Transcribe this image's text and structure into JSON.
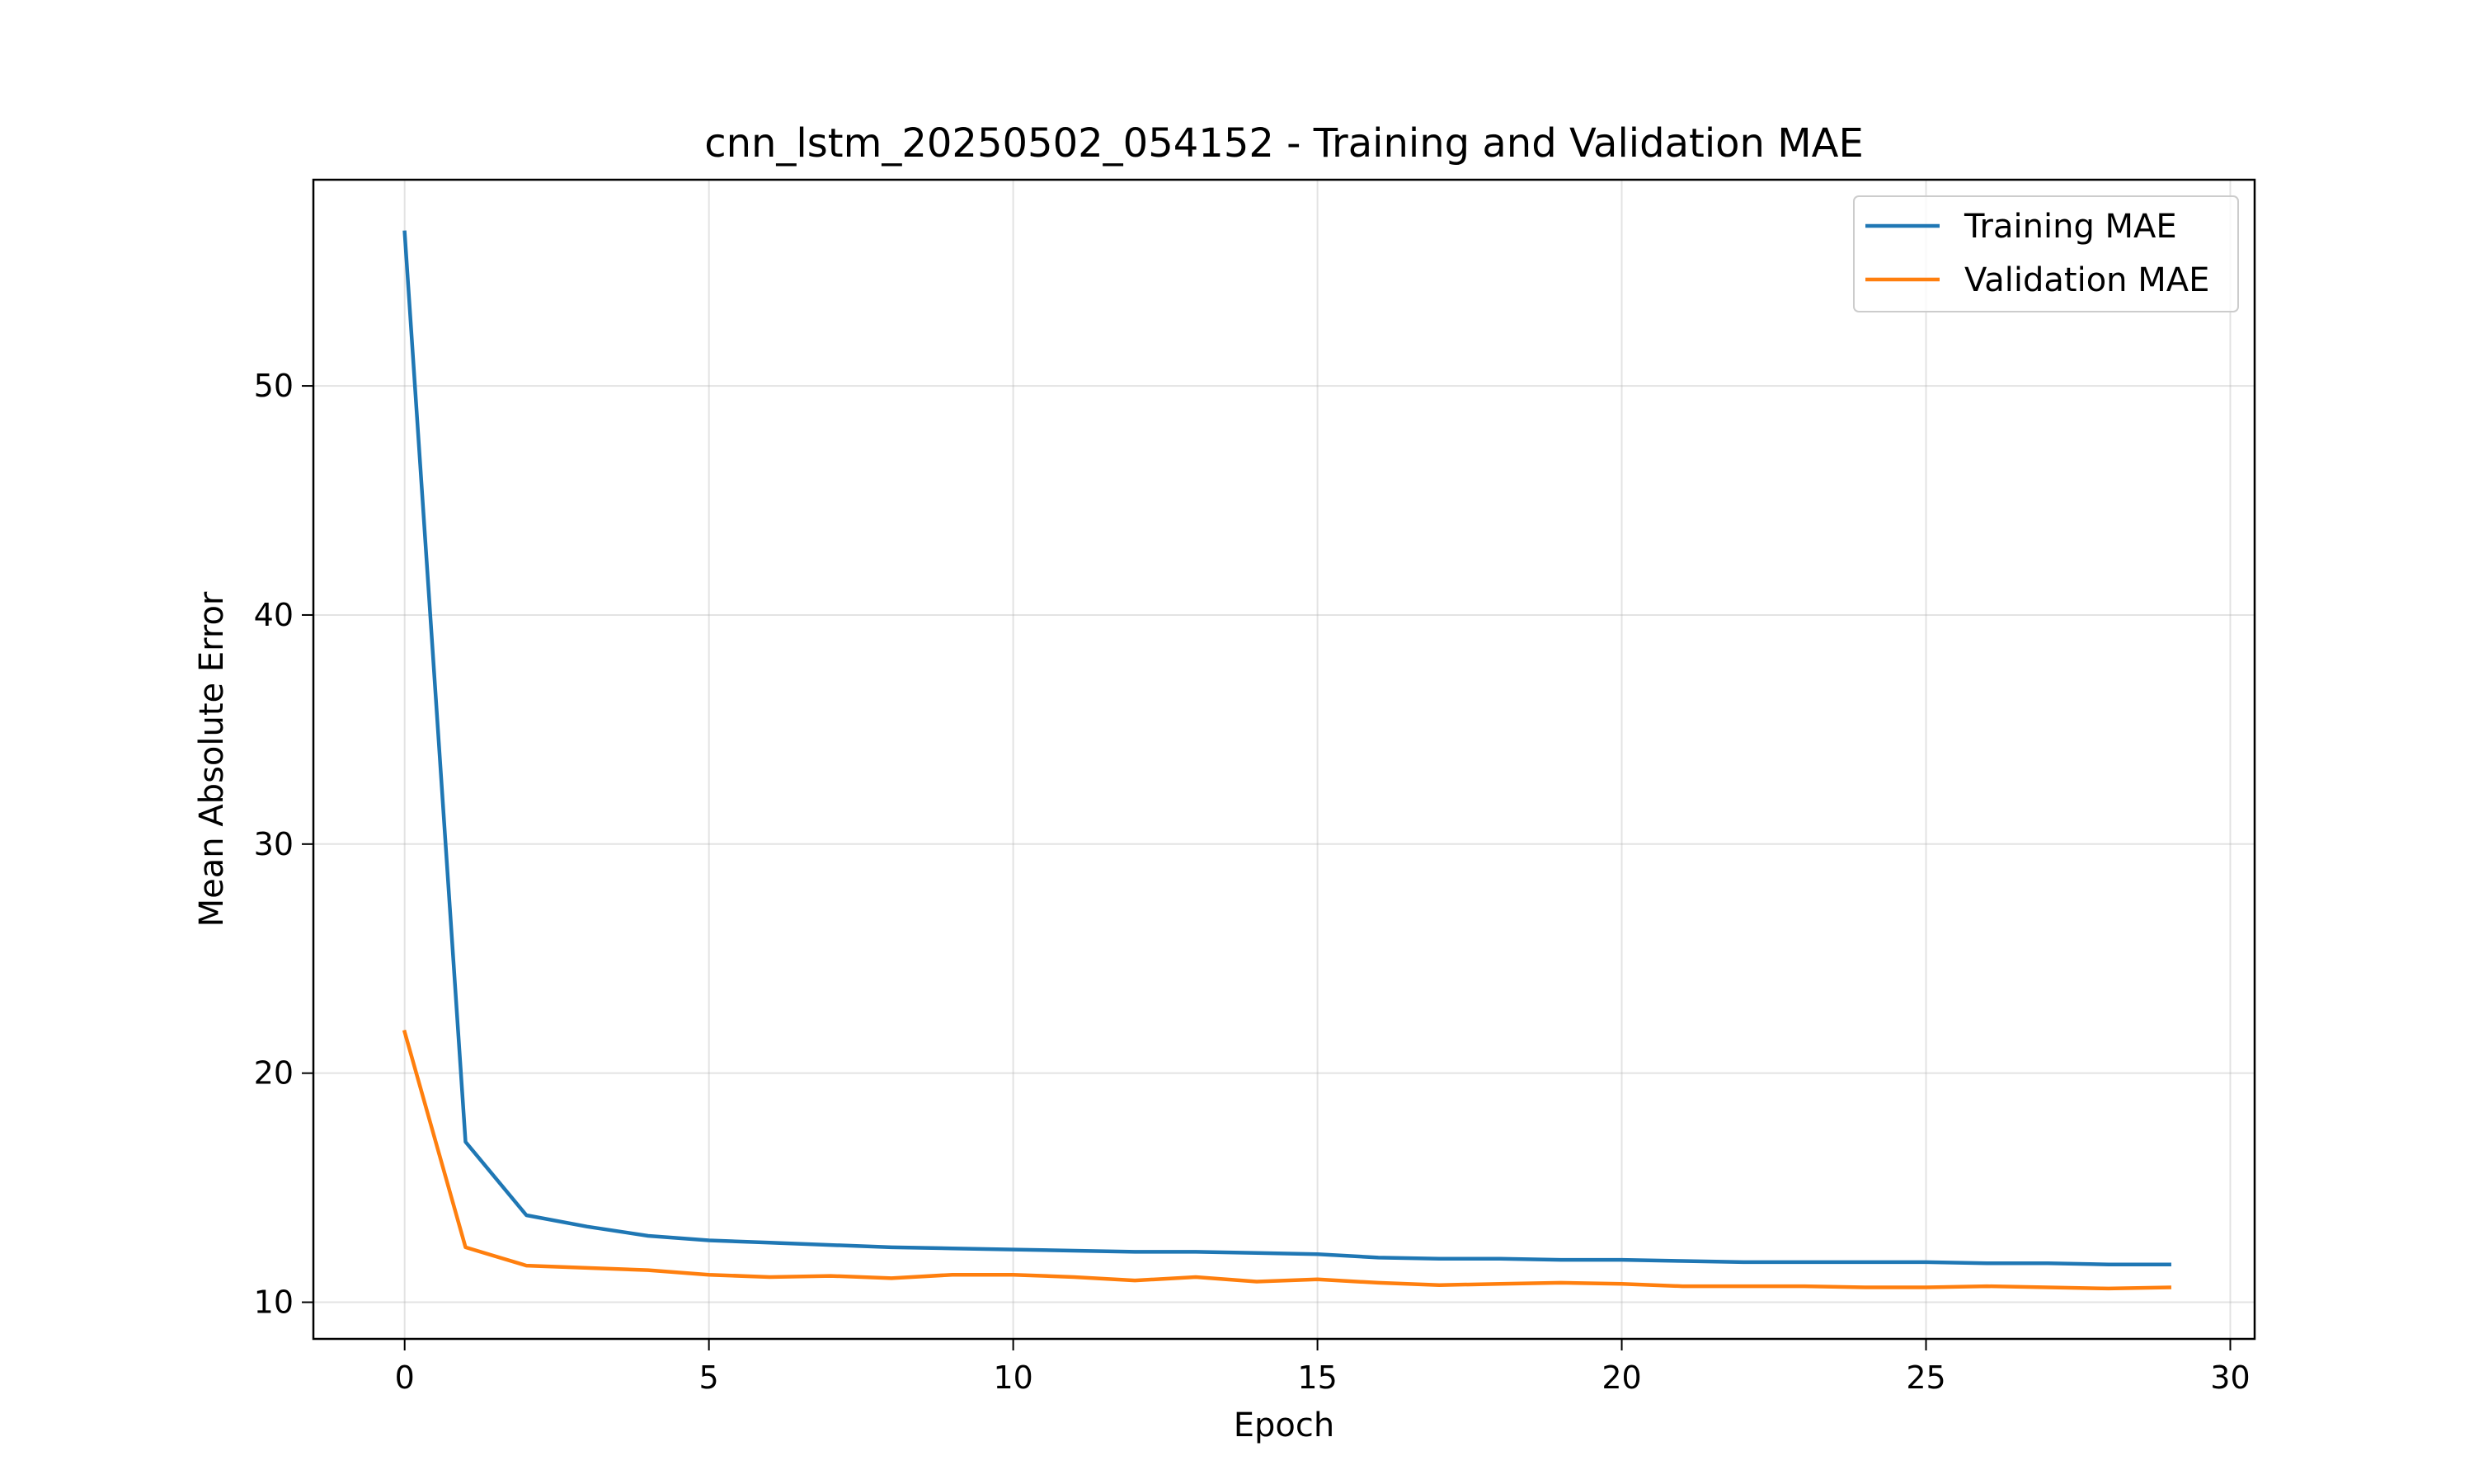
{
  "chart_data": {
    "type": "line",
    "title": "cnn_lstm_20250502_054152 - Training and Validation MAE",
    "xlabel": "Epoch",
    "ylabel": "Mean Absolute Error",
    "xlim": [
      -1.5,
      30.4
    ],
    "ylim": [
      8.4,
      59.0
    ],
    "xticks": [
      0,
      5,
      10,
      15,
      20,
      25,
      30
    ],
    "yticks": [
      10,
      20,
      30,
      40,
      50
    ],
    "grid": true,
    "legend_position": "top-right",
    "x": [
      0,
      1,
      2,
      3,
      4,
      5,
      6,
      7,
      8,
      9,
      10,
      11,
      12,
      13,
      14,
      15,
      16,
      17,
      18,
      19,
      20,
      21,
      22,
      23,
      24,
      25,
      26,
      27,
      28,
      29
    ],
    "series": [
      {
        "name": "Training MAE",
        "color": "#1f77b4",
        "values": [
          56.7,
          17.0,
          13.8,
          13.3,
          12.9,
          12.7,
          12.6,
          12.5,
          12.4,
          12.35,
          12.3,
          12.25,
          12.2,
          12.2,
          12.15,
          12.1,
          11.95,
          11.9,
          11.9,
          11.85,
          11.85,
          11.8,
          11.75,
          11.75,
          11.75,
          11.75,
          11.7,
          11.7,
          11.65,
          11.65
        ]
      },
      {
        "name": "Validation MAE",
        "color": "#ff7f0e",
        "values": [
          21.8,
          12.4,
          11.6,
          11.5,
          11.4,
          11.2,
          11.1,
          11.15,
          11.05,
          11.2,
          11.2,
          11.1,
          10.95,
          11.1,
          10.9,
          11.0,
          10.85,
          10.75,
          10.8,
          10.85,
          10.8,
          10.7,
          10.7,
          10.7,
          10.65,
          10.65,
          10.7,
          10.65,
          10.6,
          10.65
        ]
      }
    ]
  }
}
